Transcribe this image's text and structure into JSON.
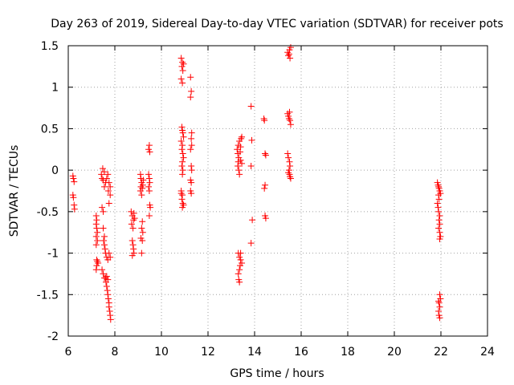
{
  "chart_data": {
    "type": "scatter",
    "title": "Day 263 of 2019, Sidereal Day-to-day VTEC variation (SDTVAR) for receiver pots",
    "xlabel": "GPS time / hours",
    "ylabel": "SDTVAR / TECUs",
    "xlim": [
      6,
      24
    ],
    "ylim": [
      -2,
      1.5
    ],
    "xticks": [
      "6",
      "8",
      "10",
      "12",
      "14",
      "16",
      "18",
      "20",
      "22",
      "24"
    ],
    "yticks": [
      "1.5",
      "1",
      "0.5",
      "0",
      "-0.5",
      "-1",
      "-1.5",
      "-2"
    ],
    "xtick_values": [
      6,
      8,
      10,
      12,
      14,
      16,
      18,
      20,
      22,
      24
    ],
    "ytick_values": [
      1.5,
      1,
      0.5,
      0,
      -0.5,
      -1,
      -1.5,
      -2
    ],
    "grid": true,
    "marker": "+",
    "color": "#ff0000",
    "series": [
      {
        "name": "SDTVAR",
        "points": [
          [
            6.2,
            -0.07
          ],
          [
            6.22,
            -0.1
          ],
          [
            6.25,
            -0.14
          ],
          [
            6.2,
            -0.3
          ],
          [
            6.22,
            -0.33
          ],
          [
            6.25,
            -0.42
          ],
          [
            6.27,
            -0.47
          ],
          [
            7.2,
            -0.55
          ],
          [
            7.22,
            -0.6
          ],
          [
            7.2,
            -0.65
          ],
          [
            7.22,
            -0.7
          ],
          [
            7.25,
            -0.75
          ],
          [
            7.2,
            -0.8
          ],
          [
            7.25,
            -0.85
          ],
          [
            7.2,
            -0.9
          ],
          [
            7.22,
            -1.08
          ],
          [
            7.25,
            -1.1
          ],
          [
            7.28,
            -1.12
          ],
          [
            7.22,
            -1.15
          ],
          [
            7.2,
            -1.2
          ],
          [
            7.42,
            -0.05
          ],
          [
            7.45,
            -0.1
          ],
          [
            7.5,
            -0.12
          ],
          [
            7.55,
            -0.02
          ],
          [
            7.48,
            0.02
          ],
          [
            7.6,
            -0.15
          ],
          [
            7.65,
            -0.1
          ],
          [
            7.55,
            -0.2
          ],
          [
            7.7,
            -0.05
          ],
          [
            7.75,
            -0.15
          ],
          [
            7.8,
            -0.2
          ],
          [
            7.72,
            -0.25
          ],
          [
            7.8,
            -0.3
          ],
          [
            7.75,
            -0.4
          ],
          [
            7.45,
            -0.45
          ],
          [
            7.5,
            -0.5
          ],
          [
            7.5,
            -0.7
          ],
          [
            7.55,
            -0.8
          ],
          [
            7.52,
            -0.85
          ],
          [
            7.55,
            -0.9
          ],
          [
            7.58,
            -0.95
          ],
          [
            7.6,
            -1.0
          ],
          [
            7.65,
            -1.05
          ],
          [
            7.7,
            -1.08
          ],
          [
            7.75,
            -1.0
          ],
          [
            7.8,
            -1.05
          ],
          [
            7.45,
            -1.2
          ],
          [
            7.5,
            -1.25
          ],
          [
            7.55,
            -1.3
          ],
          [
            7.6,
            -1.3
          ],
          [
            7.62,
            -1.35
          ],
          [
            7.65,
            -1.4
          ],
          [
            7.68,
            -1.45
          ],
          [
            7.7,
            -1.5
          ],
          [
            7.72,
            -1.55
          ],
          [
            7.75,
            -1.6
          ],
          [
            7.75,
            -1.65
          ],
          [
            7.78,
            -1.7
          ],
          [
            7.8,
            -1.75
          ],
          [
            7.82,
            -1.8
          ],
          [
            7.65,
            -1.28
          ],
          [
            7.7,
            -1.32
          ],
          [
            8.7,
            -0.5
          ],
          [
            8.75,
            -0.55
          ],
          [
            8.8,
            -0.6
          ],
          [
            8.72,
            -0.65
          ],
          [
            8.78,
            -0.7
          ],
          [
            8.82,
            -0.52
          ],
          [
            8.85,
            -0.58
          ],
          [
            8.75,
            -0.85
          ],
          [
            8.78,
            -0.9
          ],
          [
            8.8,
            -0.95
          ],
          [
            8.82,
            -1.0
          ],
          [
            8.75,
            -1.03
          ],
          [
            9.1,
            -0.05
          ],
          [
            9.12,
            -0.1
          ],
          [
            9.15,
            -0.15
          ],
          [
            9.12,
            -0.2
          ],
          [
            9.18,
            -0.22
          ],
          [
            9.1,
            -0.25
          ],
          [
            9.15,
            -0.3
          ],
          [
            9.2,
            -0.18
          ],
          [
            9.22,
            -0.12
          ],
          [
            9.18,
            -0.62
          ],
          [
            9.15,
            -0.7
          ],
          [
            9.2,
            -0.75
          ],
          [
            9.12,
            -0.82
          ],
          [
            9.18,
            -0.85
          ],
          [
            9.15,
            -1.0
          ],
          [
            9.45,
            0.25
          ],
          [
            9.48,
            0.3
          ],
          [
            9.5,
            0.22
          ],
          [
            9.45,
            -0.05
          ],
          [
            9.48,
            -0.1
          ],
          [
            9.5,
            -0.15
          ],
          [
            9.45,
            -0.2
          ],
          [
            9.48,
            -0.25
          ],
          [
            9.5,
            -0.42
          ],
          [
            9.52,
            -0.45
          ],
          [
            9.48,
            -0.55
          ],
          [
            10.85,
            1.35
          ],
          [
            10.9,
            1.3
          ],
          [
            10.88,
            1.25
          ],
          [
            10.92,
            1.2
          ],
          [
            10.85,
            1.1
          ],
          [
            10.9,
            1.05
          ],
          [
            10.95,
            1.28
          ],
          [
            10.88,
            0.52
          ],
          [
            10.9,
            0.48
          ],
          [
            10.92,
            0.45
          ],
          [
            10.95,
            0.4
          ],
          [
            10.85,
            0.35
          ],
          [
            10.9,
            0.3
          ],
          [
            10.88,
            0.25
          ],
          [
            10.92,
            0.2
          ],
          [
            10.95,
            0.15
          ],
          [
            10.9,
            0.1
          ],
          [
            10.88,
            0.05
          ],
          [
            10.92,
            0.0
          ],
          [
            10.85,
            -0.25
          ],
          [
            10.9,
            -0.3
          ],
          [
            10.88,
            -0.35
          ],
          [
            10.92,
            -0.4
          ],
          [
            10.95,
            -0.42
          ],
          [
            10.9,
            -0.45
          ],
          [
            10.85,
            -0.28
          ],
          [
            10.9,
            -0.05
          ],
          [
            11.25,
            1.12
          ],
          [
            11.28,
            0.95
          ],
          [
            11.25,
            0.88
          ],
          [
            11.3,
            0.45
          ],
          [
            11.28,
            0.38
          ],
          [
            11.3,
            0.3
          ],
          [
            11.25,
            0.25
          ],
          [
            11.28,
            0.05
          ],
          [
            11.3,
            0.0
          ],
          [
            11.25,
            -0.12
          ],
          [
            11.28,
            -0.15
          ],
          [
            11.25,
            -0.25
          ],
          [
            11.28,
            -0.28
          ],
          [
            13.25,
            0.25
          ],
          [
            13.28,
            0.2
          ],
          [
            13.3,
            0.3
          ],
          [
            13.32,
            0.15
          ],
          [
            13.35,
            0.35
          ],
          [
            13.3,
            0.1
          ],
          [
            13.28,
            0.05
          ],
          [
            13.32,
            0.0
          ],
          [
            13.35,
            -0.05
          ],
          [
            13.38,
            0.22
          ],
          [
            13.4,
            0.28
          ],
          [
            13.42,
            0.38
          ],
          [
            13.45,
            0.4
          ],
          [
            13.4,
            0.12
          ],
          [
            13.45,
            0.08
          ],
          [
            13.3,
            -1.0
          ],
          [
            13.35,
            -1.05
          ],
          [
            13.4,
            -1.08
          ],
          [
            13.45,
            -1.12
          ],
          [
            13.38,
            -1.15
          ],
          [
            13.35,
            -1.2
          ],
          [
            13.3,
            -1.25
          ],
          [
            13.32,
            -1.32
          ],
          [
            13.35,
            -1.35
          ],
          [
            13.4,
            -1.0
          ],
          [
            13.85,
            0.77
          ],
          [
            13.88,
            0.36
          ],
          [
            13.85,
            0.05
          ],
          [
            13.9,
            -0.6
          ],
          [
            13.85,
            -0.88
          ],
          [
            14.4,
            0.62
          ],
          [
            14.42,
            0.6
          ],
          [
            14.45,
            0.2
          ],
          [
            14.48,
            0.18
          ],
          [
            14.45,
            -0.18
          ],
          [
            14.42,
            -0.22
          ],
          [
            14.45,
            -0.55
          ],
          [
            14.48,
            -0.58
          ],
          [
            15.42,
            1.42
          ],
          [
            15.45,
            1.38
          ],
          [
            15.5,
            1.45
          ],
          [
            15.52,
            1.35
          ],
          [
            15.55,
            1.48
          ],
          [
            15.48,
            1.4
          ],
          [
            15.42,
            0.68
          ],
          [
            15.45,
            0.65
          ],
          [
            15.5,
            0.7
          ],
          [
            15.52,
            0.6
          ],
          [
            15.55,
            0.55
          ],
          [
            15.48,
            0.62
          ],
          [
            15.42,
            0.2
          ],
          [
            15.45,
            0.15
          ],
          [
            15.5,
            0.1
          ],
          [
            15.52,
            0.05
          ],
          [
            15.48,
            0.0
          ],
          [
            15.45,
            -0.03
          ],
          [
            15.5,
            -0.05
          ],
          [
            15.52,
            -0.08
          ],
          [
            15.55,
            -0.1
          ],
          [
            21.85,
            -0.15
          ],
          [
            21.88,
            -0.18
          ],
          [
            21.9,
            -0.2
          ],
          [
            21.92,
            -0.22
          ],
          [
            21.95,
            -0.25
          ],
          [
            21.98,
            -0.28
          ],
          [
            21.9,
            -0.3
          ],
          [
            21.92,
            -0.35
          ],
          [
            21.85,
            -0.4
          ],
          [
            21.88,
            -0.45
          ],
          [
            21.9,
            -0.5
          ],
          [
            21.95,
            -0.55
          ],
          [
            21.92,
            -0.6
          ],
          [
            21.95,
            -0.65
          ],
          [
            21.9,
            -0.7
          ],
          [
            21.95,
            -0.75
          ],
          [
            21.98,
            -0.8
          ],
          [
            21.95,
            -0.83
          ],
          [
            21.95,
            -1.5
          ],
          [
            21.98,
            -1.55
          ],
          [
            21.9,
            -1.58
          ],
          [
            21.92,
            -1.6
          ],
          [
            21.95,
            -1.65
          ],
          [
            21.9,
            -1.7
          ],
          [
            21.92,
            -1.75
          ],
          [
            21.95,
            -1.78
          ]
        ]
      }
    ]
  }
}
